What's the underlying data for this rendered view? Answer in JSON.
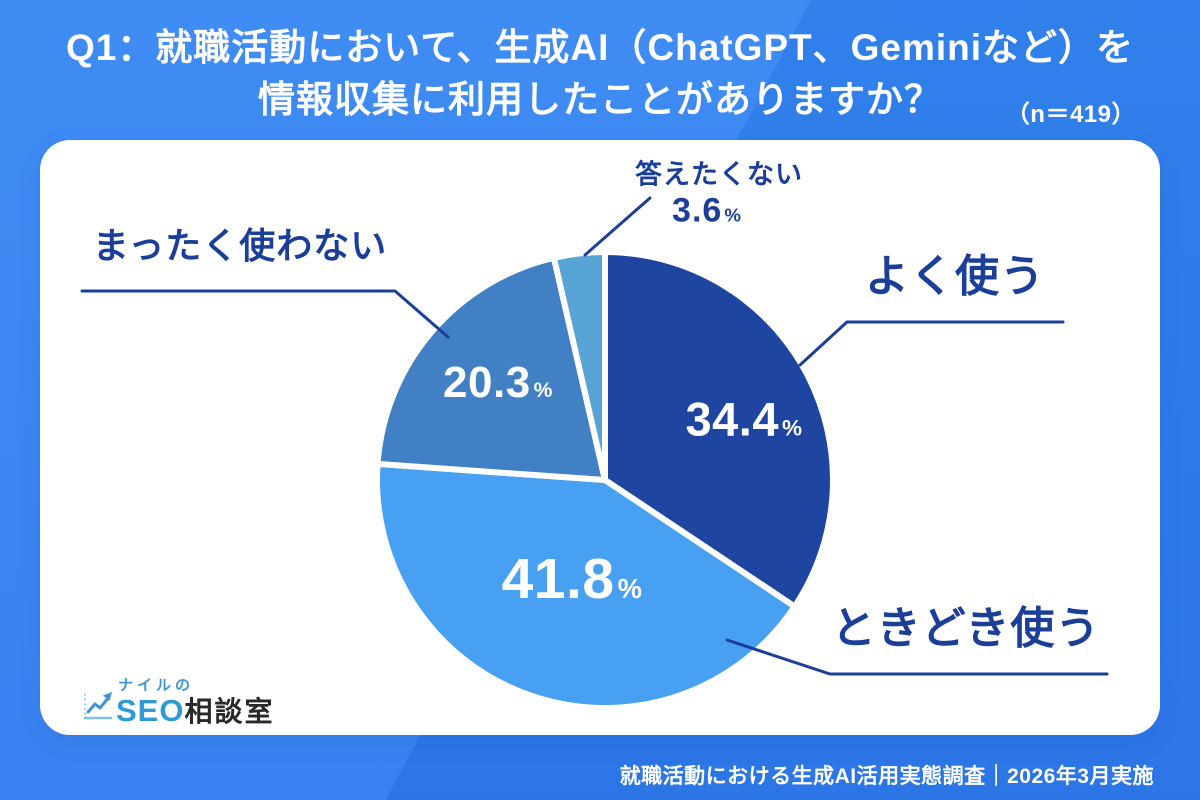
{
  "title": {
    "line1": "Q1：就職活動において、生成AI（ChatGPT、Geminiなど）を",
    "line2": "情報収集に利用したことがありますか？",
    "sample": "（n＝419）"
  },
  "chart_data": {
    "type": "pie",
    "title": "就職活動において、生成AI（ChatGPT、Geminiなど）を情報収集に利用したことがありますか？",
    "n": 419,
    "unit": "%",
    "start_angle_deg": 0,
    "direction": "clockwise",
    "percent_symbol": "%",
    "slices": [
      {
        "label": "よく使う",
        "value": 34.4,
        "display": "34.4",
        "color": "#1E459F"
      },
      {
        "label": "ときどき使う",
        "value": 41.8,
        "display": "41.8",
        "color": "#47A0F2"
      },
      {
        "label": "まったく使わない",
        "value": 20.3,
        "display": "20.3",
        "color": "#4180C4"
      },
      {
        "label": "答えたくない",
        "value": 3.6,
        "display": "3.6",
        "color": "#57A3D6"
      }
    ],
    "colors": {
      "inside_label": "#FFFFFF",
      "outside_label": "#1B3F99",
      "callout_line": "#1B3F99",
      "slice_gap": "#FFFFFF"
    },
    "legend_position": "callout-labels"
  },
  "logo": {
    "brand_top": "ナイルの",
    "brand_seo": "SEO",
    "brand_rest": "相談室"
  },
  "footer": {
    "caption": "就職活動における生成AI活用実態調査｜2026年3月実施"
  }
}
